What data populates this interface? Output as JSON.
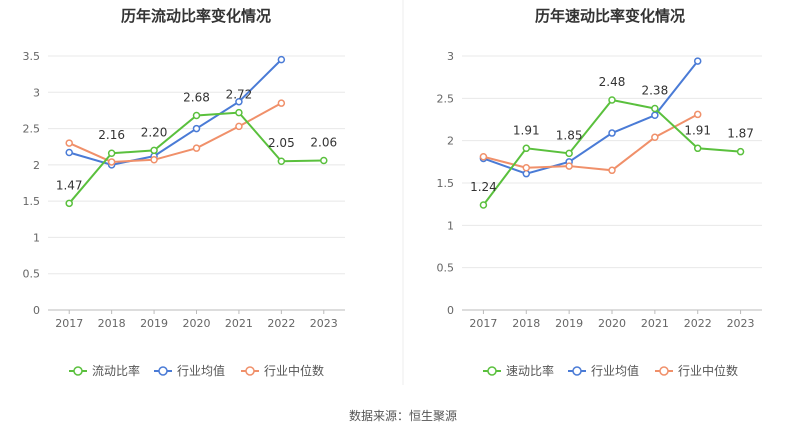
{
  "colors": {
    "company": "#5ac03d",
    "industry_avg": "#4a7bd6",
    "industry_median": "#f0906a",
    "grid": "#e8e8e8",
    "axis": "#bbbbbb"
  },
  "source": "数据来源：恒生聚源",
  "chart_data": [
    {
      "type": "line",
      "title": "历年流动比率变化情况",
      "x": [
        "2017",
        "2018",
        "2019",
        "2020",
        "2021",
        "2022",
        "2023"
      ],
      "ylim": [
        0,
        3.5
      ],
      "yticks": [
        "0",
        "0.5",
        "1",
        "1.5",
        "2",
        "2.5",
        "3",
        "3.5"
      ],
      "grid": true,
      "legend_position": "bottom",
      "series": [
        {
          "name": "流动比率",
          "key": "company",
          "values": [
            1.47,
            2.16,
            2.2,
            2.68,
            2.72,
            2.05,
            2.06
          ],
          "labels": [
            "1.47",
            "2.16",
            "2.20",
            "2.68",
            "2.72",
            "2.05",
            "2.06"
          ]
        },
        {
          "name": "行业均值",
          "key": "industry_avg",
          "values": [
            2.17,
            2.0,
            2.12,
            2.5,
            2.87,
            3.45,
            null
          ]
        },
        {
          "name": "行业中位数",
          "key": "industry_median",
          "values": [
            2.3,
            2.04,
            2.07,
            2.23,
            2.53,
            2.85,
            null
          ]
        }
      ]
    },
    {
      "type": "line",
      "title": "历年速动比率变化情况",
      "x": [
        "2017",
        "2018",
        "2019",
        "2020",
        "2021",
        "2022",
        "2023"
      ],
      "ylim": [
        0,
        3
      ],
      "yticks": [
        "0",
        "0.5",
        "1",
        "1.5",
        "2",
        "2.5",
        "3"
      ],
      "grid": true,
      "legend_position": "bottom",
      "series": [
        {
          "name": "速动比率",
          "key": "company",
          "values": [
            1.24,
            1.91,
            1.85,
            2.48,
            2.38,
            1.91,
            1.87
          ],
          "labels": [
            "1.24",
            "1.91",
            "1.85",
            "2.48",
            "2.38",
            "1.91",
            "1.87"
          ]
        },
        {
          "name": "行业均值",
          "key": "industry_avg",
          "values": [
            1.79,
            1.61,
            1.75,
            2.09,
            2.3,
            2.94,
            null
          ]
        },
        {
          "name": "行业中位数",
          "key": "industry_median",
          "values": [
            1.81,
            1.68,
            1.7,
            1.65,
            2.04,
            2.31,
            null
          ]
        }
      ]
    }
  ]
}
